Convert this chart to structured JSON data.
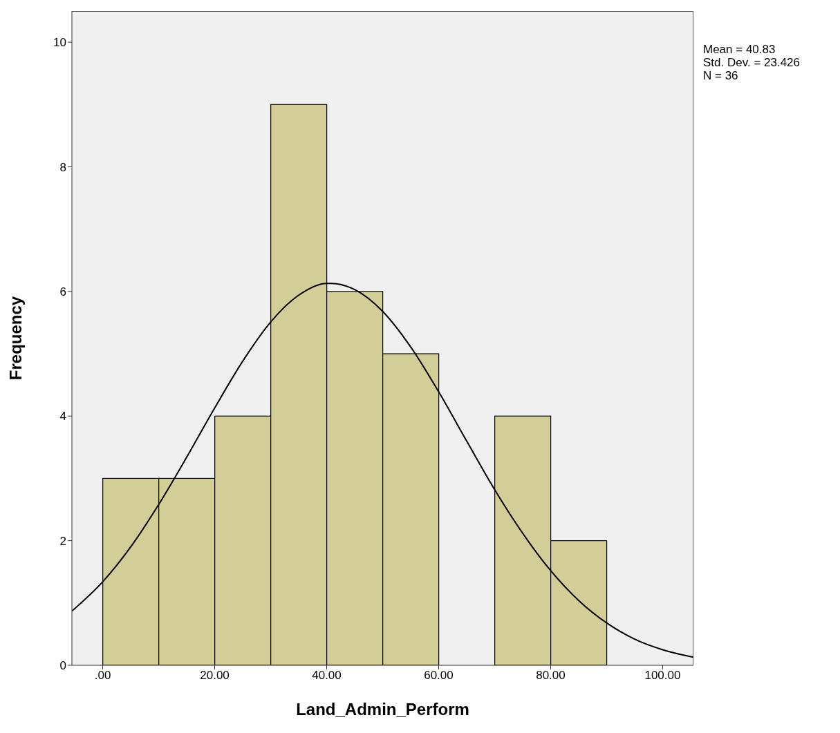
{
  "chart_data": {
    "type": "histogram",
    "xlabel": "Land_Admin_Perform",
    "ylabel": "Frequency",
    "bins": [
      0,
      10,
      20,
      30,
      40,
      50,
      60,
      70,
      80,
      90
    ],
    "values": [
      3,
      3,
      4,
      9,
      6,
      5,
      0,
      4,
      2
    ],
    "color": "#d3ce97",
    "series": [
      {
        "type": "line",
        "color": "#000000",
        "x": [
          -5.5,
          0,
          5,
          10,
          15,
          20,
          25,
          30,
          35,
          40,
          40.83,
          45,
          50,
          55,
          60,
          65,
          70,
          75,
          80,
          85,
          90,
          95,
          100,
          105.5
        ],
        "values": [
          0.87,
          1.34,
          1.9,
          2.58,
          3.34,
          4.13,
          4.88,
          5.51,
          5.94,
          6.13,
          6.13,
          6.03,
          5.68,
          5.11,
          4.39,
          3.6,
          2.82,
          2.12,
          1.52,
          1.04,
          0.68,
          0.42,
          0.25,
          0.13
        ]
      }
    ],
    "xlim": [
      -5.5,
      105.5
    ],
    "xticks": [
      {
        "value": 0,
        "label": ".00"
      },
      {
        "value": 20,
        "label": "20.00"
      },
      {
        "value": 40,
        "label": "40.00"
      },
      {
        "value": 60,
        "label": "60.00"
      },
      {
        "value": 80,
        "label": "80.00"
      },
      {
        "value": 100,
        "label": "100.00"
      }
    ],
    "ylim": [
      0,
      10.5
    ],
    "yticks": [
      0,
      2,
      4,
      6,
      8,
      10
    ],
    "annotations": [
      "Mean = 40.83",
      "Std. Dev. = 23.426",
      "N = 36"
    ],
    "grid": false
  }
}
